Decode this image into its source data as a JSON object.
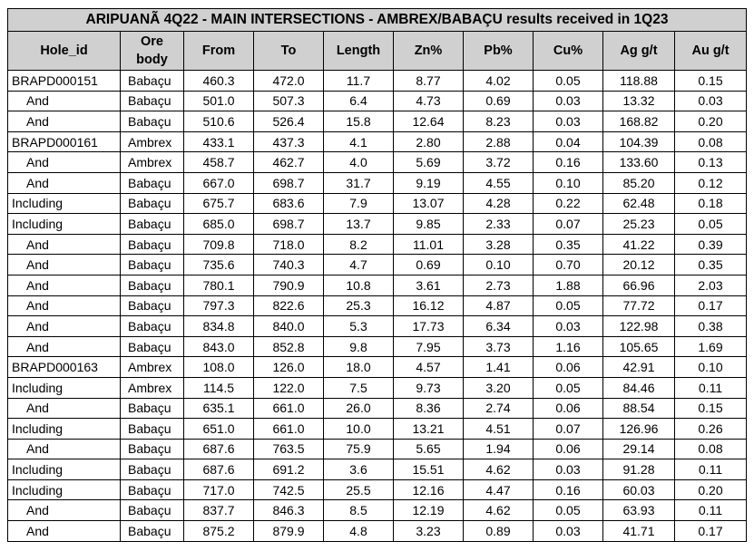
{
  "title": "ARIPUANÃ 4Q22 - MAIN INTERSECTIONS - AMBREX/BABAÇU results received in 1Q23",
  "columns": [
    "Hole_id",
    "Ore body",
    "From",
    "To",
    "Length",
    "Zn%",
    "Pb%",
    "Cu%",
    "Ag g/t",
    "Au g/t"
  ],
  "rows": [
    {
      "hole": "BRAPD000151",
      "ore": "Babaçu",
      "from": "460.3",
      "to": "472.0",
      "length": "11.7",
      "zn": "8.77",
      "pb": "4.02",
      "cu": "0.05",
      "ag": "118.88",
      "au": "0.15"
    },
    {
      "hole": "And",
      "ore": "Babaçu",
      "from": "501.0",
      "to": "507.3",
      "length": "6.4",
      "zn": "4.73",
      "pb": "0.69",
      "cu": "0.03",
      "ag": "13.32",
      "au": "0.03"
    },
    {
      "hole": "And",
      "ore": "Babaçu",
      "from": "510.6",
      "to": "526.4",
      "length": "15.8",
      "zn": "12.64",
      "pb": "8.23",
      "cu": "0.03",
      "ag": "168.82",
      "au": "0.20"
    },
    {
      "hole": "BRAPD000161",
      "ore": "Ambrex",
      "from": "433.1",
      "to": "437.3",
      "length": "4.1",
      "zn": "2.80",
      "pb": "2.88",
      "cu": "0.04",
      "ag": "104.39",
      "au": "0.08"
    },
    {
      "hole": "And",
      "ore": "Ambrex",
      "from": "458.7",
      "to": "462.7",
      "length": "4.0",
      "zn": "5.69",
      "pb": "3.72",
      "cu": "0.16",
      "ag": "133.60",
      "au": "0.13"
    },
    {
      "hole": "And",
      "ore": "Babaçu",
      "from": "667.0",
      "to": "698.7",
      "length": "31.7",
      "zn": "9.19",
      "pb": "4.55",
      "cu": "0.10",
      "ag": "85.20",
      "au": "0.12"
    },
    {
      "hole": "Including",
      "ore": "Babaçu",
      "from": "675.7",
      "to": "683.6",
      "length": "7.9",
      "zn": "13.07",
      "pb": "4.28",
      "cu": "0.22",
      "ag": "62.48",
      "au": "0.18"
    },
    {
      "hole": "Including",
      "ore": "Babaçu",
      "from": "685.0",
      "to": "698.7",
      "length": "13.7",
      "zn": "9.85",
      "pb": "2.33",
      "cu": "0.07",
      "ag": "25.23",
      "au": "0.05"
    },
    {
      "hole": "And",
      "ore": "Babaçu",
      "from": "709.8",
      "to": "718.0",
      "length": "8.2",
      "zn": "11.01",
      "pb": "3.28",
      "cu": "0.35",
      "ag": "41.22",
      "au": "0.39"
    },
    {
      "hole": "And",
      "ore": "Babaçu",
      "from": "735.6",
      "to": "740.3",
      "length": "4.7",
      "zn": "0.69",
      "pb": "0.10",
      "cu": "0.70",
      "ag": "20.12",
      "au": "0.35"
    },
    {
      "hole": "And",
      "ore": "Babaçu",
      "from": "780.1",
      "to": "790.9",
      "length": "10.8",
      "zn": "3.61",
      "pb": "2.73",
      "cu": "1.88",
      "ag": "66.96",
      "au": "2.03"
    },
    {
      "hole": "And",
      "ore": "Babaçu",
      "from": "797.3",
      "to": "822.6",
      "length": "25.3",
      "zn": "16.12",
      "pb": "4.87",
      "cu": "0.05",
      "ag": "77.72",
      "au": "0.17"
    },
    {
      "hole": "And",
      "ore": "Babaçu",
      "from": "834.8",
      "to": "840.0",
      "length": "5.3",
      "zn": "17.73",
      "pb": "6.34",
      "cu": "0.03",
      "ag": "122.98",
      "au": "0.38"
    },
    {
      "hole": "And",
      "ore": "Babaçu",
      "from": "843.0",
      "to": "852.8",
      "length": "9.8",
      "zn": "7.95",
      "pb": "3.73",
      "cu": "1.16",
      "ag": "105.65",
      "au": "1.69"
    },
    {
      "hole": "BRAPD000163",
      "ore": "Ambrex",
      "from": "108.0",
      "to": "126.0",
      "length": "18.0",
      "zn": "4.57",
      "pb": "1.41",
      "cu": "0.06",
      "ag": "42.91",
      "au": "0.10"
    },
    {
      "hole": "Including",
      "ore": "Ambrex",
      "from": "114.5",
      "to": "122.0",
      "length": "7.5",
      "zn": "9.73",
      "pb": "3.20",
      "cu": "0.05",
      "ag": "84.46",
      "au": "0.11"
    },
    {
      "hole": "And",
      "ore": "Babaçu",
      "from": "635.1",
      "to": "661.0",
      "length": "26.0",
      "zn": "8.36",
      "pb": "2.74",
      "cu": "0.06",
      "ag": "88.54",
      "au": "0.15"
    },
    {
      "hole": "Including",
      "ore": "Babaçu",
      "from": "651.0",
      "to": "661.0",
      "length": "10.0",
      "zn": "13.21",
      "pb": "4.51",
      "cu": "0.07",
      "ag": "126.96",
      "au": "0.26"
    },
    {
      "hole": "And",
      "ore": "Babaçu",
      "from": "687.6",
      "to": "763.5",
      "length": "75.9",
      "zn": "5.65",
      "pb": "1.94",
      "cu": "0.06",
      "ag": "29.14",
      "au": "0.08"
    },
    {
      "hole": "Including",
      "ore": "Babaçu",
      "from": "687.6",
      "to": "691.2",
      "length": "3.6",
      "zn": "15.51",
      "pb": "4.62",
      "cu": "0.03",
      "ag": "91.28",
      "au": "0.11"
    },
    {
      "hole": "Including",
      "ore": "Babaçu",
      "from": "717.0",
      "to": "742.5",
      "length": "25.5",
      "zn": "12.16",
      "pb": "4.47",
      "cu": "0.16",
      "ag": "60.03",
      "au": "0.20"
    },
    {
      "hole": "And",
      "ore": "Babaçu",
      "from": "837.7",
      "to": "846.3",
      "length": "8.5",
      "zn": "12.19",
      "pb": "4.62",
      "cu": "0.05",
      "ag": "63.93",
      "au": "0.11"
    },
    {
      "hole": "And",
      "ore": "Babaçu",
      "from": "875.2",
      "to": "879.9",
      "length": "4.8",
      "zn": "3.23",
      "pb": "0.89",
      "cu": "0.03",
      "ag": "41.71",
      "au": "0.17"
    }
  ]
}
